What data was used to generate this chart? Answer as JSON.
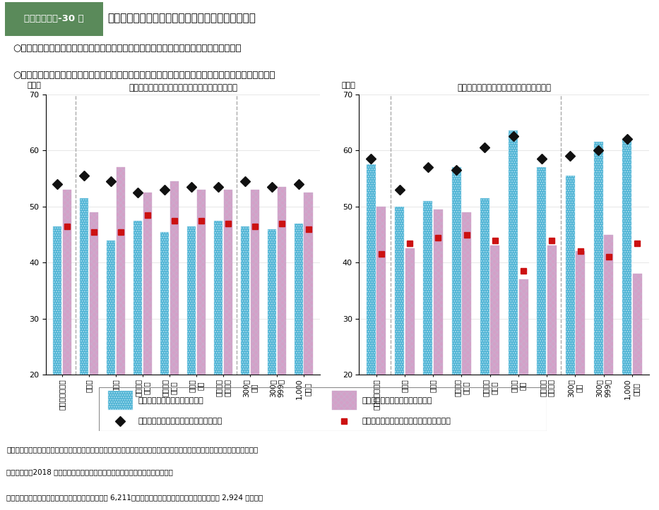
{
  "left_chart": {
    "title": "役職に就いていない労働者の能力に関する考え方",
    "categories": [
      "全規模・全産業",
      "建設業",
      "製造業",
      "運輸業・\n郵便業",
      "卸売業・\n小売業",
      "医療・\n福祉",
      "その他の\n非製造業",
      "300人\n未満",
      "300～\n999人",
      "1,000\n人以上"
    ],
    "generalist_now": [
      46.5,
      51.5,
      44.0,
      47.5,
      45.5,
      46.5,
      47.5,
      46.5,
      46.0,
      47.0
    ],
    "specialist_now": [
      53.0,
      49.0,
      57.0,
      52.5,
      54.5,
      53.0,
      53.0,
      53.0,
      53.5,
      52.5
    ],
    "generalist_5y": [
      54.0,
      55.5,
      54.5,
      52.5,
      53.0,
      53.5,
      53.5,
      54.5,
      53.5,
      54.0
    ],
    "specialist_5y": [
      46.5,
      45.5,
      45.5,
      48.5,
      47.5,
      47.5,
      47.0,
      46.5,
      47.0,
      46.0
    ],
    "dashed_lines": [
      1,
      7
    ]
  },
  "right_chart": {
    "title": "課長・部長相当職者の能力に関する考え方",
    "categories": [
      "全規模・全産業",
      "建設業",
      "製造業",
      "運輸業・\n郵便業",
      "卸売業・\n小売業",
      "医療・\n福祉",
      "その他の\n非製造業",
      "300人\n未満",
      "300～\n999人",
      "1,000\n人以上"
    ],
    "generalist_now": [
      57.5,
      50.0,
      51.0,
      57.0,
      51.5,
      63.5,
      57.0,
      55.5,
      61.5,
      62.0
    ],
    "specialist_now": [
      50.0,
      42.5,
      49.5,
      49.0,
      43.0,
      37.0,
      43.0,
      42.0,
      45.0,
      38.0
    ],
    "generalist_5y": [
      58.5,
      53.0,
      57.0,
      56.5,
      60.5,
      62.5,
      58.5,
      59.0,
      60.0,
      62.0
    ],
    "specialist_5y": [
      41.5,
      43.5,
      44.5,
      45.0,
      44.0,
      38.5,
      44.0,
      42.0,
      41.0,
      43.5
    ],
    "dashed_lines": [
      1,
      7
    ]
  },
  "colors": {
    "generalist_now_face": "#4db3d4",
    "specialist_now_face": "#d4a0c8",
    "generalist_5y_marker": "#111111",
    "specialist_5y_marker": "#cc1111"
  },
  "ylim": [
    20,
    70
  ],
  "yticks": [
    20,
    30,
    40,
    50,
    60,
    70
  ],
  "bullet1": "役職に就いていない労働者は、今後ゼネラリストとしての就労を希望する者が多い。",
  "bullet2": "大企業の課長・部長相当職者は、今後スペシャリストとしての就労を希望する者の割合が高まる。",
  "footer1": "資料出所　（独）労働政策研究・研修機構「多様な働き方の進展と人材マネジメントの在り方に関する調査（正社員調査票）」",
  "footer2": "　　　　　（2018 年）の個票を厚生労働省労働政策担当参事官室にて独自集計",
  "footer3": "（注）　左図の全規模・全産業のサンプルサイズは 6,211、右図の全規模・全産業のサンプルサイズは 2,924 である。"
}
